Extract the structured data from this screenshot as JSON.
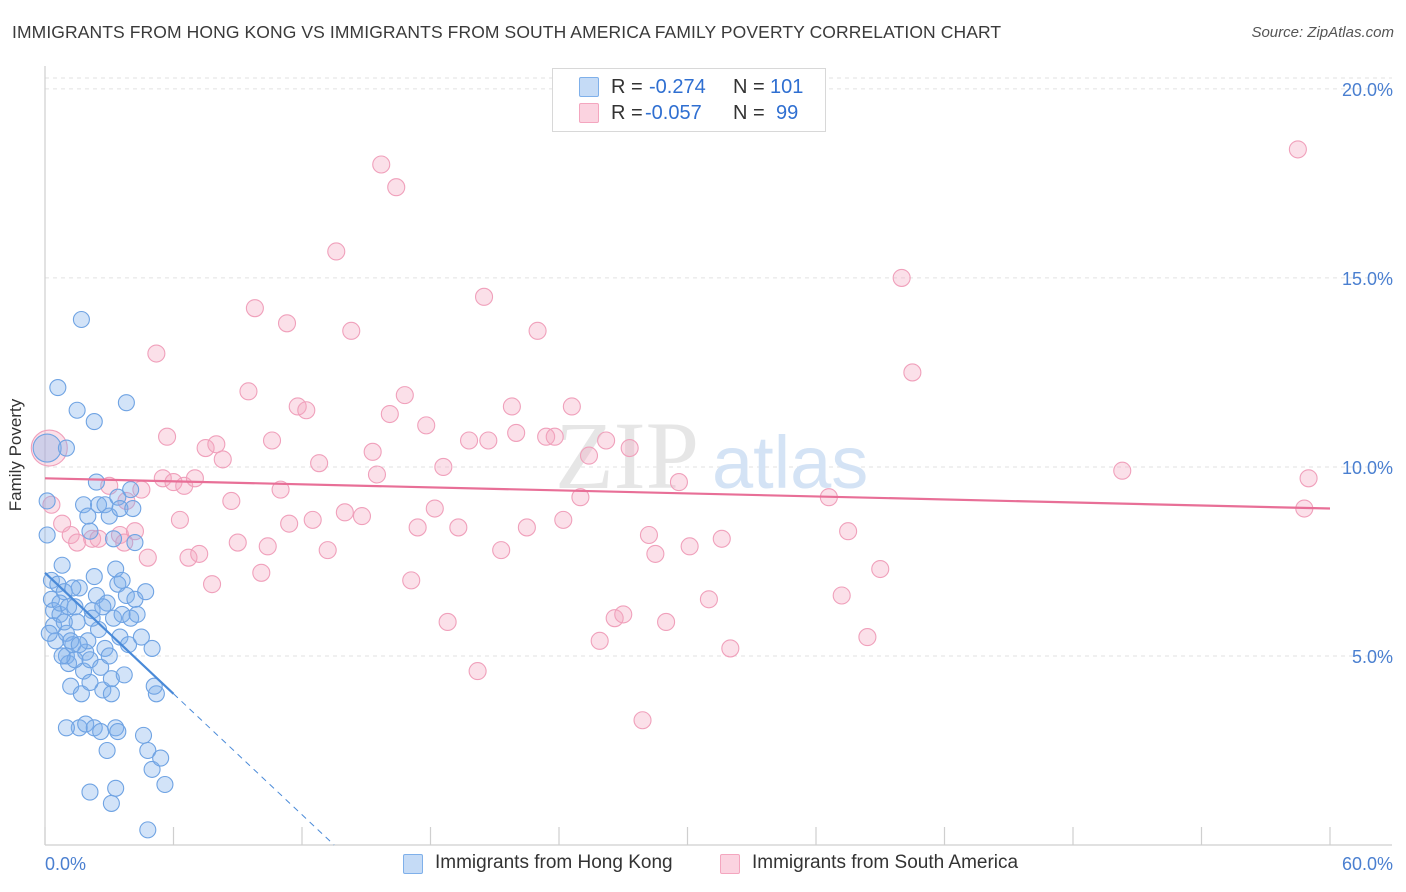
{
  "title": "IMMIGRANTS FROM HONG KONG VS IMMIGRANTS FROM SOUTH AMERICA FAMILY POVERTY CORRELATION CHART",
  "source": "Source: ZipAtlas.com",
  "watermark": {
    "zip": "ZIP",
    "atlas": "atlas"
  },
  "legend": {
    "series1": {
      "r_label": "R =",
      "r_value": "-0.274",
      "n_label": "N =",
      "n_value": "101",
      "color": "#7fb0ea"
    },
    "series2": {
      "r_label": "R =",
      "r_value": "-0.057",
      "n_label": "N =",
      "n_value": "99",
      "color": "#f4a6bf"
    }
  },
  "bottom_legend": {
    "series1": "Immigrants from Hong Kong",
    "series2": "Immigrants from South America"
  },
  "chart_data": {
    "type": "scatter",
    "title": "IMMIGRANTS FROM HONG KONG VS IMMIGRANTS FROM SOUTH AMERICA FAMILY POVERTY CORRELATION CHART",
    "xlabel": "",
    "ylabel": "Family Poverty",
    "xlim": [
      0,
      60
    ],
    "ylim": [
      0,
      20.5
    ],
    "x_tick_labels": [
      "0.0%",
      "60.0%"
    ],
    "y_ticks": [
      5,
      10,
      15,
      20
    ],
    "y_tick_labels": [
      "5.0%",
      "10.0%",
      "15.0%",
      "20.0%"
    ],
    "grid": "horizontal dashed",
    "series": [
      {
        "name": "Immigrants from Hong Kong",
        "color": "#4a8ad8",
        "fill": "rgba(127,176,234,0.35)",
        "trend": {
          "x": [
            0,
            6
          ],
          "y": [
            7.2,
            4.0
          ],
          "dashed_extension": {
            "x": [
              6,
              13.5
            ],
            "y": [
              4.0,
              0
            ]
          }
        },
        "points": [
          [
            0.1,
            10.5
          ],
          [
            0.1,
            9.1
          ],
          [
            0.1,
            8.2
          ],
          [
            0.3,
            7.0
          ],
          [
            0.3,
            6.5
          ],
          [
            0.4,
            6.2
          ],
          [
            0.4,
            5.8
          ],
          [
            0.5,
            5.4
          ],
          [
            0.6,
            6.9
          ],
          [
            0.7,
            6.1
          ],
          [
            0.8,
            7.4
          ],
          [
            0.9,
            6.7
          ],
          [
            1.0,
            5.6
          ],
          [
            1.0,
            5.0
          ],
          [
            1.1,
            4.8
          ],
          [
            1.2,
            4.2
          ],
          [
            1.3,
            5.3
          ],
          [
            1.4,
            6.3
          ],
          [
            1.5,
            5.9
          ],
          [
            1.6,
            6.8
          ],
          [
            1.7,
            4.0
          ],
          [
            1.8,
            4.6
          ],
          [
            1.9,
            5.1
          ],
          [
            2.0,
            5.4
          ],
          [
            2.1,
            4.9
          ],
          [
            2.2,
            6.2
          ],
          [
            2.3,
            7.1
          ],
          [
            2.4,
            6.6
          ],
          [
            2.5,
            5.7
          ],
          [
            2.6,
            4.7
          ],
          [
            2.7,
            4.1
          ],
          [
            2.8,
            5.2
          ],
          [
            2.9,
            6.4
          ],
          [
            3.0,
            5.0
          ],
          [
            3.1,
            4.4
          ],
          [
            3.2,
            6.0
          ],
          [
            3.3,
            7.3
          ],
          [
            3.4,
            6.9
          ],
          [
            3.5,
            5.5
          ],
          [
            3.6,
            6.1
          ],
          [
            3.7,
            4.5
          ],
          [
            3.8,
            6.6
          ],
          [
            3.9,
            5.3
          ],
          [
            4.0,
            6.0
          ],
          [
            4.2,
            6.5
          ],
          [
            4.3,
            6.1
          ],
          [
            4.5,
            5.5
          ],
          [
            4.7,
            6.7
          ],
          [
            5.0,
            5.2
          ],
          [
            5.2,
            4.0
          ],
          [
            0.2,
            5.6
          ],
          [
            0.6,
            12.1
          ],
          [
            1.0,
            10.5
          ],
          [
            1.5,
            11.5
          ],
          [
            1.8,
            9.0
          ],
          [
            2.0,
            8.7
          ],
          [
            2.1,
            8.3
          ],
          [
            2.3,
            11.2
          ],
          [
            2.4,
            9.6
          ],
          [
            2.5,
            9.0
          ],
          [
            2.8,
            9.0
          ],
          [
            3.0,
            8.7
          ],
          [
            3.2,
            8.1
          ],
          [
            3.4,
            9.2
          ],
          [
            3.5,
            8.9
          ],
          [
            3.8,
            11.7
          ],
          [
            4.0,
            9.4
          ],
          [
            4.1,
            8.9
          ],
          [
            4.2,
            8.0
          ],
          [
            1.7,
            13.9
          ],
          [
            0.7,
            6.4
          ],
          [
            0.9,
            5.9
          ],
          [
            1.2,
            5.4
          ],
          [
            1.4,
            4.9
          ],
          [
            1.6,
            3.1
          ],
          [
            1.9,
            3.2
          ],
          [
            2.1,
            4.3
          ],
          [
            2.3,
            3.1
          ],
          [
            2.6,
            3.0
          ],
          [
            2.9,
            2.5
          ],
          [
            3.1,
            4.0
          ],
          [
            3.3,
            3.1
          ],
          [
            3.4,
            3.0
          ],
          [
            4.6,
            2.9
          ],
          [
            4.8,
            2.5
          ],
          [
            5.0,
            2.0
          ],
          [
            5.4,
            2.3
          ],
          [
            5.6,
            1.6
          ],
          [
            3.3,
            1.5
          ],
          [
            2.1,
            1.4
          ],
          [
            3.1,
            1.1
          ],
          [
            4.8,
            0.4
          ],
          [
            5.1,
            4.2
          ],
          [
            1.1,
            6.3
          ],
          [
            1.3,
            6.8
          ],
          [
            2.2,
            6.0
          ],
          [
            2.7,
            6.3
          ],
          [
            3.6,
            7.0
          ],
          [
            1.0,
            3.1
          ],
          [
            0.8,
            5.0
          ],
          [
            1.6,
            5.3
          ]
        ]
      },
      {
        "name": "Immigrants from South America",
        "color": "#e86f97",
        "fill": "rgba(244,166,191,0.35)",
        "trend": {
          "x": [
            0,
            60
          ],
          "y": [
            9.7,
            8.9
          ]
        },
        "points": [
          [
            0.2,
            10.5
          ],
          [
            0.3,
            9.0
          ],
          [
            0.8,
            8.5
          ],
          [
            1.2,
            8.2
          ],
          [
            1.5,
            8.0
          ],
          [
            2.2,
            8.1
          ],
          [
            2.5,
            8.1
          ],
          [
            3.0,
            9.5
          ],
          [
            3.5,
            8.2
          ],
          [
            3.8,
            9.1
          ],
          [
            4.2,
            8.3
          ],
          [
            4.5,
            9.4
          ],
          [
            4.8,
            7.6
          ],
          [
            5.2,
            13.0
          ],
          [
            5.5,
            9.7
          ],
          [
            5.7,
            10.8
          ],
          [
            6.0,
            9.6
          ],
          [
            6.5,
            9.5
          ],
          [
            6.3,
            8.6
          ],
          [
            6.7,
            7.6
          ],
          [
            7.0,
            9.7
          ],
          [
            7.2,
            7.7
          ],
          [
            7.5,
            10.5
          ],
          [
            7.8,
            6.9
          ],
          [
            8.0,
            10.6
          ],
          [
            8.3,
            10.2
          ],
          [
            8.7,
            9.1
          ],
          [
            9.0,
            8.0
          ],
          [
            9.5,
            12.0
          ],
          [
            9.8,
            14.2
          ],
          [
            10.1,
            7.2
          ],
          [
            10.4,
            7.9
          ],
          [
            10.6,
            10.7
          ],
          [
            11.0,
            9.4
          ],
          [
            11.3,
            13.8
          ],
          [
            11.4,
            8.5
          ],
          [
            11.8,
            11.6
          ],
          [
            12.2,
            11.5
          ],
          [
            12.5,
            8.6
          ],
          [
            12.8,
            10.1
          ],
          [
            13.2,
            7.8
          ],
          [
            13.6,
            15.7
          ],
          [
            14.0,
            8.8
          ],
          [
            14.3,
            13.6
          ],
          [
            14.8,
            8.7
          ],
          [
            15.3,
            10.4
          ],
          [
            15.5,
            9.8
          ],
          [
            15.7,
            18.0
          ],
          [
            16.1,
            11.4
          ],
          [
            16.4,
            17.4
          ],
          [
            16.8,
            11.9
          ],
          [
            17.1,
            7.0
          ],
          [
            17.4,
            8.4
          ],
          [
            17.8,
            11.1
          ],
          [
            18.2,
            8.9
          ],
          [
            18.6,
            10.0
          ],
          [
            18.8,
            5.9
          ],
          [
            19.3,
            8.4
          ],
          [
            19.8,
            10.7
          ],
          [
            20.2,
            4.6
          ],
          [
            20.5,
            14.5
          ],
          [
            20.7,
            10.7
          ],
          [
            21.3,
            7.8
          ],
          [
            21.8,
            11.6
          ],
          [
            22.0,
            10.9
          ],
          [
            22.5,
            8.4
          ],
          [
            23.0,
            13.6
          ],
          [
            23.4,
            10.8
          ],
          [
            23.8,
            10.8
          ],
          [
            24.2,
            8.6
          ],
          [
            24.6,
            11.6
          ],
          [
            25.0,
            9.2
          ],
          [
            25.4,
            10.3
          ],
          [
            25.9,
            5.4
          ],
          [
            26.2,
            10.7
          ],
          [
            26.6,
            6.0
          ],
          [
            27.0,
            6.1
          ],
          [
            27.3,
            10.5
          ],
          [
            27.9,
            3.3
          ],
          [
            28.2,
            8.2
          ],
          [
            28.5,
            7.7
          ],
          [
            29.0,
            5.9
          ],
          [
            29.6,
            9.6
          ],
          [
            30.1,
            7.9
          ],
          [
            31.0,
            6.5
          ],
          [
            31.6,
            8.1
          ],
          [
            32.0,
            5.2
          ],
          [
            36.6,
            9.2
          ],
          [
            37.2,
            6.6
          ],
          [
            37.5,
            8.3
          ],
          [
            38.4,
            5.5
          ],
          [
            39.0,
            7.3
          ],
          [
            40.0,
            15.0
          ],
          [
            40.5,
            12.5
          ],
          [
            50.3,
            9.9
          ],
          [
            58.5,
            18.4
          ],
          [
            58.8,
            8.9
          ],
          [
            59.0,
            9.7
          ],
          [
            3.7,
            8.0
          ]
        ]
      }
    ]
  }
}
